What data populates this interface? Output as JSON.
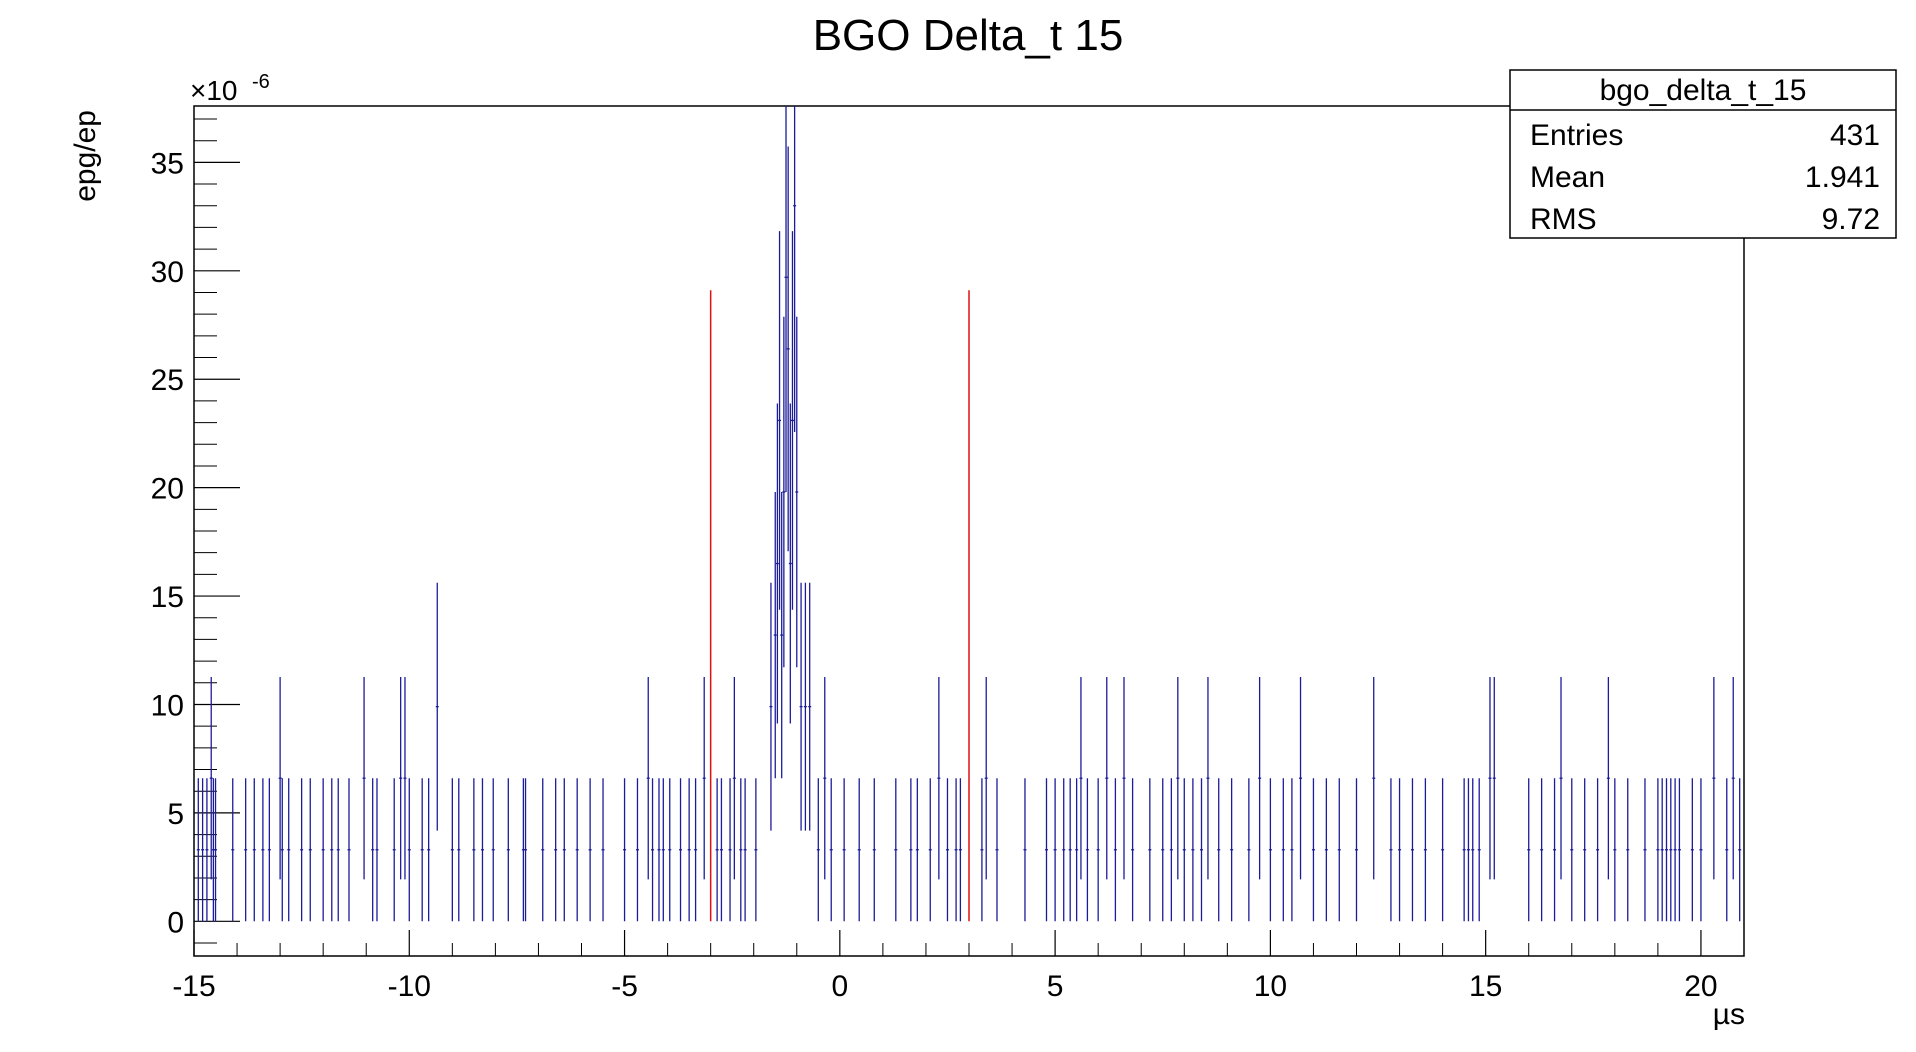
{
  "colors": {
    "histogram": "#1c1c9a",
    "markers": "#e01010",
    "frame": "#000000",
    "background": "#ffffff"
  },
  "chart_data": {
    "type": "histogram",
    "title": "BGO Delta_t 15",
    "xlabel": "µs",
    "ylabel": "epg/ep",
    "y_exponent_label": "×10",
    "y_exponent_power": "-6",
    "xlim": [
      -15,
      21
    ],
    "ylim": [
      -1.6,
      37.6
    ],
    "grid": false,
    "x_ticks": [
      -15,
      -10,
      -5,
      0,
      5,
      10,
      15,
      20
    ],
    "y_ticks": [
      0,
      5,
      10,
      15,
      20,
      25,
      30,
      35
    ],
    "x_tick_labels": [
      "-15",
      "-10",
      "-5",
      "0",
      "5",
      "10",
      "15",
      "20"
    ],
    "y_tick_labels": [
      "0",
      "5",
      "10",
      "15",
      "20",
      "25",
      "30",
      "35"
    ],
    "stats_box": {
      "name": "bgo_delta_t_15",
      "placement": "top-right",
      "rows": [
        {
          "label": "Entries",
          "value": "431"
        },
        {
          "label": "Mean",
          "value": "1.941"
        },
        {
          "label": "RMS",
          "value": "9.72"
        }
      ]
    },
    "marker_lines": [
      {
        "x": -3.0,
        "y_top": 29.1
      },
      {
        "x": 3.0,
        "y_top": 29.1
      }
    ],
    "error_unit": 3.3,
    "bins": [
      {
        "x": -14.9,
        "n": 1
      },
      {
        "x": -14.8,
        "n": 1
      },
      {
        "x": -14.7,
        "n": 1
      },
      {
        "x": -14.6,
        "n": 2
      },
      {
        "x": -14.55,
        "n": 1
      },
      {
        "x": -14.5,
        "n": 1
      },
      {
        "x": -14.1,
        "n": 1
      },
      {
        "x": -13.8,
        "n": 1
      },
      {
        "x": -13.6,
        "n": 1
      },
      {
        "x": -13.4,
        "n": 1
      },
      {
        "x": -13.25,
        "n": 1
      },
      {
        "x": -13.0,
        "n": 2
      },
      {
        "x": -12.95,
        "n": 1
      },
      {
        "x": -12.8,
        "n": 1
      },
      {
        "x": -12.5,
        "n": 1
      },
      {
        "x": -12.3,
        "n": 1
      },
      {
        "x": -12.0,
        "n": 1
      },
      {
        "x": -11.8,
        "n": 1
      },
      {
        "x": -11.65,
        "n": 1
      },
      {
        "x": -11.4,
        "n": 1
      },
      {
        "x": -11.05,
        "n": 2
      },
      {
        "x": -10.85,
        "n": 1
      },
      {
        "x": -10.75,
        "n": 1
      },
      {
        "x": -10.35,
        "n": 1
      },
      {
        "x": -10.2,
        "n": 2
      },
      {
        "x": -10.1,
        "n": 2
      },
      {
        "x": -10.0,
        "n": 1
      },
      {
        "x": -9.7,
        "n": 1
      },
      {
        "x": -9.55,
        "n": 1
      },
      {
        "x": -9.35,
        "n": 3
      },
      {
        "x": -9.0,
        "n": 1
      },
      {
        "x": -8.85,
        "n": 1
      },
      {
        "x": -8.5,
        "n": 1
      },
      {
        "x": -8.3,
        "n": 1
      },
      {
        "x": -8.05,
        "n": 1
      },
      {
        "x": -7.7,
        "n": 1
      },
      {
        "x": -7.35,
        "n": 1
      },
      {
        "x": -7.3,
        "n": 1
      },
      {
        "x": -6.9,
        "n": 1
      },
      {
        "x": -6.6,
        "n": 1
      },
      {
        "x": -6.4,
        "n": 1
      },
      {
        "x": -6.1,
        "n": 1
      },
      {
        "x": -5.8,
        "n": 1
      },
      {
        "x": -5.5,
        "n": 1
      },
      {
        "x": -5.0,
        "n": 1
      },
      {
        "x": -4.7,
        "n": 1
      },
      {
        "x": -4.45,
        "n": 2
      },
      {
        "x": -4.35,
        "n": 1
      },
      {
        "x": -4.2,
        "n": 1
      },
      {
        "x": -4.1,
        "n": 1
      },
      {
        "x": -3.95,
        "n": 1
      },
      {
        "x": -3.7,
        "n": 1
      },
      {
        "x": -3.5,
        "n": 1
      },
      {
        "x": -3.35,
        "n": 1
      },
      {
        "x": -3.15,
        "n": 2
      },
      {
        "x": -2.85,
        "n": 1
      },
      {
        "x": -2.75,
        "n": 1
      },
      {
        "x": -2.55,
        "n": 1
      },
      {
        "x": -2.45,
        "n": 2
      },
      {
        "x": -2.3,
        "n": 1
      },
      {
        "x": -2.2,
        "n": 1
      },
      {
        "x": -1.95,
        "n": 1
      },
      {
        "x": -1.6,
        "n": 3
      },
      {
        "x": -1.5,
        "n": 4
      },
      {
        "x": -1.45,
        "n": 5
      },
      {
        "x": -1.4,
        "n": 7
      },
      {
        "x": -1.35,
        "n": 4
      },
      {
        "x": -1.3,
        "n": 6
      },
      {
        "x": -1.25,
        "n": 9
      },
      {
        "x": -1.2,
        "n": 8
      },
      {
        "x": -1.15,
        "n": 5
      },
      {
        "x": -1.1,
        "n": 7
      },
      {
        "x": -1.05,
        "n": 10
      },
      {
        "x": -1.0,
        "n": 6
      },
      {
        "x": -0.9,
        "n": 3
      },
      {
        "x": -0.8,
        "n": 3
      },
      {
        "x": -0.7,
        "n": 3
      },
      {
        "x": -0.5,
        "n": 1
      },
      {
        "x": -0.35,
        "n": 2
      },
      {
        "x": -0.2,
        "n": 1
      },
      {
        "x": 0.1,
        "n": 1
      },
      {
        "x": 0.45,
        "n": 1
      },
      {
        "x": 0.8,
        "n": 1
      },
      {
        "x": 1.3,
        "n": 1
      },
      {
        "x": 1.65,
        "n": 1
      },
      {
        "x": 1.8,
        "n": 1
      },
      {
        "x": 2.1,
        "n": 1
      },
      {
        "x": 2.3,
        "n": 2
      },
      {
        "x": 2.5,
        "n": 1
      },
      {
        "x": 2.7,
        "n": 1
      },
      {
        "x": 2.8,
        "n": 1
      },
      {
        "x": 3.3,
        "n": 1
      },
      {
        "x": 3.4,
        "n": 2
      },
      {
        "x": 3.65,
        "n": 1
      },
      {
        "x": 4.3,
        "n": 1
      },
      {
        "x": 4.8,
        "n": 1
      },
      {
        "x": 5.0,
        "n": 1
      },
      {
        "x": 5.2,
        "n": 1
      },
      {
        "x": 5.35,
        "n": 1
      },
      {
        "x": 5.5,
        "n": 1
      },
      {
        "x": 5.6,
        "n": 2
      },
      {
        "x": 5.75,
        "n": 1
      },
      {
        "x": 6.0,
        "n": 1
      },
      {
        "x": 6.2,
        "n": 2
      },
      {
        "x": 6.4,
        "n": 1
      },
      {
        "x": 6.6,
        "n": 2
      },
      {
        "x": 6.8,
        "n": 1
      },
      {
        "x": 7.2,
        "n": 1
      },
      {
        "x": 7.5,
        "n": 1
      },
      {
        "x": 7.7,
        "n": 1
      },
      {
        "x": 7.85,
        "n": 2
      },
      {
        "x": 8.0,
        "n": 1
      },
      {
        "x": 8.2,
        "n": 1
      },
      {
        "x": 8.4,
        "n": 1
      },
      {
        "x": 8.55,
        "n": 2
      },
      {
        "x": 8.8,
        "n": 1
      },
      {
        "x": 9.1,
        "n": 1
      },
      {
        "x": 9.5,
        "n": 1
      },
      {
        "x": 9.75,
        "n": 2
      },
      {
        "x": 10.0,
        "n": 1
      },
      {
        "x": 10.3,
        "n": 1
      },
      {
        "x": 10.5,
        "n": 1
      },
      {
        "x": 10.7,
        "n": 2
      },
      {
        "x": 11.0,
        "n": 1
      },
      {
        "x": 11.3,
        "n": 1
      },
      {
        "x": 11.6,
        "n": 1
      },
      {
        "x": 12.0,
        "n": 1
      },
      {
        "x": 12.4,
        "n": 2
      },
      {
        "x": 12.8,
        "n": 1
      },
      {
        "x": 13.0,
        "n": 1
      },
      {
        "x": 13.3,
        "n": 1
      },
      {
        "x": 13.6,
        "n": 1
      },
      {
        "x": 14.0,
        "n": 1
      },
      {
        "x": 14.5,
        "n": 1
      },
      {
        "x": 14.6,
        "n": 1
      },
      {
        "x": 14.7,
        "n": 1
      },
      {
        "x": 14.85,
        "n": 1
      },
      {
        "x": 15.1,
        "n": 2
      },
      {
        "x": 15.2,
        "n": 2
      },
      {
        "x": 16.0,
        "n": 1
      },
      {
        "x": 16.3,
        "n": 1
      },
      {
        "x": 16.6,
        "n": 1
      },
      {
        "x": 16.75,
        "n": 2
      },
      {
        "x": 17.0,
        "n": 1
      },
      {
        "x": 17.3,
        "n": 1
      },
      {
        "x": 17.6,
        "n": 1
      },
      {
        "x": 17.85,
        "n": 2
      },
      {
        "x": 18.0,
        "n": 1
      },
      {
        "x": 18.3,
        "n": 1
      },
      {
        "x": 18.7,
        "n": 1
      },
      {
        "x": 19.0,
        "n": 1
      },
      {
        "x": 19.1,
        "n": 1
      },
      {
        "x": 19.2,
        "n": 1
      },
      {
        "x": 19.3,
        "n": 1
      },
      {
        "x": 19.4,
        "n": 1
      },
      {
        "x": 19.5,
        "n": 1
      },
      {
        "x": 19.8,
        "n": 1
      },
      {
        "x": 20.0,
        "n": 1
      },
      {
        "x": 20.3,
        "n": 2
      },
      {
        "x": 20.6,
        "n": 1
      },
      {
        "x": 20.75,
        "n": 2
      },
      {
        "x": 20.9,
        "n": 1
      }
    ]
  }
}
